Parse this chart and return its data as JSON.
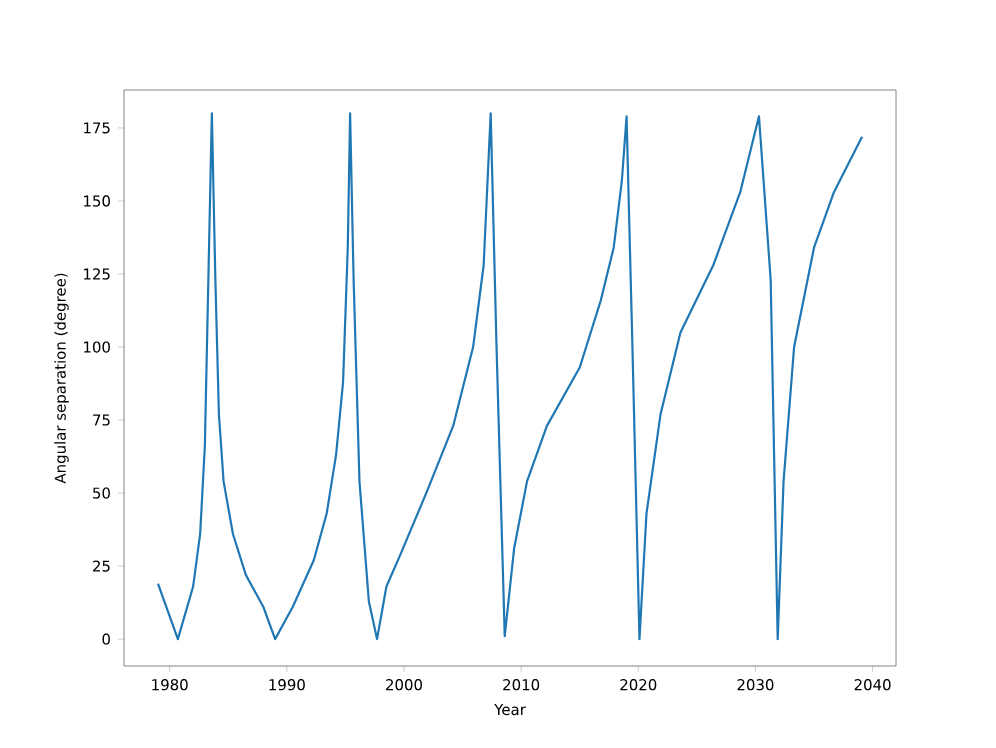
{
  "chart_data": {
    "type": "line",
    "xlabel": "Year",
    "ylabel": "Angular separation (degree)",
    "xlim": [
      1976.1,
      2042
    ],
    "ylim": [
      -9.2,
      188
    ],
    "xticks": [
      1980,
      1990,
      2000,
      2010,
      2020,
      2030,
      2040
    ],
    "yticks": [
      0,
      25,
      50,
      75,
      100,
      125,
      150,
      175
    ],
    "grid": false,
    "marker": "none",
    "line_style": "solid",
    "series": [
      {
        "color": "#1f77b4",
        "x": [
          1979.0,
          1980.7,
          1982.0,
          1982.6,
          1983.0,
          1983.3,
          1983.6,
          1983.9,
          1984.2,
          1984.6,
          1985.4,
          1986.5,
          1988.0,
          1989.0,
          1990.5,
          1992.3,
          1993.4,
          1994.2,
          1994.8,
          1995.2,
          1995.4,
          1995.7,
          1996.2,
          1997.0,
          1997.7,
          1998.5,
          1999.7,
          2001.9,
          2004.2,
          2005.9,
          2006.8,
          2007.4,
          2007.9,
          2008.6,
          2009.4,
          2010.5,
          2012.2,
          2015.0,
          2016.8,
          2017.9,
          2018.6,
          2019.0,
          2019.5,
          2020.1,
          2020.7,
          2021.9,
          2023.6,
          2026.4,
          2028.7,
          2030.3,
          2031.3,
          2031.9,
          2032.4,
          2033.3,
          2035.0,
          2036.7,
          2039.1
        ],
        "values": [
          19,
          0,
          18,
          36,
          66,
          123,
          180,
          123,
          77,
          54,
          36,
          22,
          11,
          0,
          11,
          27,
          43,
          63,
          88,
          134,
          180,
          123,
          54,
          13,
          0,
          18,
          29,
          50,
          73,
          100,
          128,
          180,
          100,
          1,
          31,
          54,
          73,
          93,
          116,
          134,
          157,
          179,
          100,
          0,
          43,
          77,
          105,
          128,
          153,
          179,
          123,
          0,
          54,
          100,
          134,
          153,
          172
        ]
      }
    ]
  }
}
